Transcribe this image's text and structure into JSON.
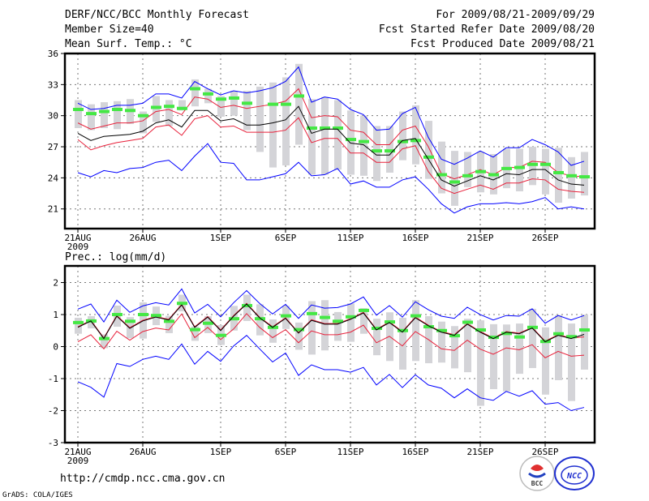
{
  "header": {
    "title": "DERF/NCC/BCC Monthly Forecast",
    "member_size": "Member Size=40",
    "variable": "Mean Surf. Temp.: °C",
    "period": "For 2009/08/21-2009/09/29",
    "start_date": "Fcst Started Refer Date 2009/08/20",
    "produced_date": "Fcst Produced Date 2009/08/21"
  },
  "footer": {
    "url": "http://cmdp.ncc.cma.gov.cn",
    "grads": "GrADS: COLA/IGES",
    "logo_bcc": "BCC",
    "logo_ncc": "NCC"
  },
  "colors": {
    "max_min": "#0000ff",
    "spread": "#e8203a",
    "mean": "#000000",
    "median": "#44e844",
    "box": "#d4d4d8"
  },
  "chart_data": [
    {
      "type": "line",
      "title": "Mean Surf. Temp.: °C",
      "ylim": [
        19.1,
        36
      ],
      "yticks": [
        21,
        24,
        27,
        30,
        33,
        36
      ],
      "xticks": [
        {
          "day": 0,
          "label": "21AUG"
        },
        {
          "day": 5,
          "label": "26AUG"
        },
        {
          "day": 11,
          "label": "1SEP"
        },
        {
          "day": 16,
          "label": "6SEP"
        },
        {
          "day": 21,
          "label": "11SEP"
        },
        {
          "day": 26,
          "label": "16SEP"
        },
        {
          "day": 31,
          "label": "21SEP"
        },
        {
          "day": 36,
          "label": "26SEP"
        }
      ],
      "year_label": "2009",
      "grid": true,
      "series": {
        "max": [
          31.2,
          30.6,
          30.7,
          31.0,
          31.0,
          31.2,
          32.1,
          32.1,
          31.7,
          33.3,
          32.6,
          32.0,
          32.4,
          32.2,
          32.4,
          32.7,
          33.3,
          34.7,
          31.3,
          31.8,
          31.6,
          30.6,
          30.1,
          28.6,
          28.7,
          30.2,
          30.8,
          27.9,
          25.8,
          25.3,
          25.9,
          26.6,
          26.0,
          26.9,
          26.9,
          27.7,
          27.2,
          26.5,
          25.2,
          25.6
        ],
        "upper": [
          29.3,
          28.7,
          29.0,
          29.3,
          29.3,
          29.5,
          30.4,
          30.6,
          30.1,
          31.8,
          31.6,
          30.8,
          31.0,
          30.7,
          30.9,
          31.1,
          31.4,
          32.6,
          29.8,
          30.0,
          29.9,
          28.6,
          28.4,
          27.2,
          27.2,
          28.6,
          29.0,
          27.0,
          24.4,
          23.9,
          24.3,
          24.8,
          24.3,
          25.0,
          25.0,
          25.6,
          25.5,
          24.5,
          24.2,
          24.1
        ],
        "mean": [
          28.3,
          27.6,
          28.0,
          28.1,
          28.2,
          28.5,
          29.3,
          29.6,
          28.9,
          30.5,
          30.5,
          29.5,
          29.7,
          29.1,
          29.1,
          29.3,
          29.6,
          30.9,
          28.3,
          28.7,
          28.7,
          27.35,
          27.2,
          26.2,
          26.2,
          27.6,
          27.8,
          25.8,
          23.8,
          23.2,
          23.7,
          24.2,
          23.8,
          24.4,
          24.3,
          24.8,
          24.8,
          23.8,
          23.4,
          23.3
        ],
        "lower": [
          27.7,
          26.7,
          27.1,
          27.4,
          27.6,
          27.8,
          28.9,
          29.1,
          28.1,
          29.7,
          30.0,
          28.9,
          29.0,
          28.4,
          28.4,
          28.4,
          28.6,
          29.8,
          27.4,
          27.8,
          27.8,
          26.4,
          26.4,
          25.5,
          25.5,
          26.8,
          27.1,
          24.6,
          23.0,
          22.5,
          22.9,
          23.3,
          22.9,
          23.5,
          23.5,
          23.9,
          23.8,
          22.9,
          22.7,
          22.6
        ],
        "min": [
          24.5,
          24.1,
          24.7,
          24.5,
          24.9,
          25.0,
          25.5,
          25.7,
          24.7,
          26.1,
          27.3,
          25.5,
          25.4,
          23.8,
          23.8,
          24.1,
          24.4,
          25.5,
          24.2,
          24.3,
          24.9,
          23.4,
          23.7,
          23.1,
          23.1,
          23.8,
          24.1,
          22.9,
          21.5,
          20.6,
          21.2,
          21.5,
          21.5,
          21.6,
          21.5,
          21.7,
          22.1,
          21.0,
          21.2,
          21.0
        ],
        "median": [
          30.6,
          30.2,
          30.4,
          30.6,
          30.5,
          30.0,
          30.8,
          30.9,
          30.7,
          32.6,
          32.1,
          31.6,
          31.7,
          31.2,
          null,
          31.1,
          31.1,
          31.9,
          28.8,
          28.8,
          28.8,
          27.7,
          27.5,
          26.6,
          26.6,
          27.5,
          27.6,
          26.0,
          24.3,
          23.6,
          24.2,
          24.6,
          24.3,
          24.9,
          25.0,
          25.3,
          25.3,
          24.5,
          24.2,
          24.1
        ],
        "box_low": [
          28.8,
          28.6,
          28.8,
          28.7,
          29.2,
          28.3,
          29.4,
          29.0,
          30.5,
          30.9,
          31.2,
          29.9,
          30.0,
          28.6,
          26.5,
          25.0,
          25.2,
          27.2,
          24.3,
          24.3,
          24.8,
          24.3,
          24.2,
          23.7,
          24.5,
          25.7,
          25.3,
          23.9,
          22.5,
          21.3,
          23.1,
          22.6,
          22.4,
          23.0,
          22.7,
          23.3,
          22.4,
          21.6,
          22.0,
          22.3
        ],
        "box_high": [
          31.5,
          31.1,
          31.3,
          31.4,
          31.6,
          30.4,
          31.9,
          31.5,
          31.5,
          33.5,
          32.6,
          31.9,
          32.4,
          32.4,
          32.8,
          33.2,
          33.7,
          35.0,
          31.6,
          31.8,
          31.5,
          30.5,
          30.0,
          29.0,
          29.0,
          30.4,
          31.0,
          29.5,
          27.5,
          26.6,
          26.5,
          26.5,
          26.3,
          26.8,
          26.8,
          27.0,
          26.8,
          26.9,
          26.0,
          26.5
        ]
      }
    },
    {
      "type": "line",
      "title": "Prec.: log(mm/d)",
      "ylim": [
        -3,
        2.52
      ],
      "yticks": [
        -3,
        -2,
        -1,
        0,
        1,
        2
      ],
      "xticks": [
        {
          "day": 0,
          "label": "21AUG"
        },
        {
          "day": 5,
          "label": "26AUG"
        },
        {
          "day": 11,
          "label": "1SEP"
        },
        {
          "day": 16,
          "label": "6SEP"
        },
        {
          "day": 21,
          "label": "11SEP"
        },
        {
          "day": 26,
          "label": "16SEP"
        },
        {
          "day": 31,
          "label": "21SEP"
        },
        {
          "day": 36,
          "label": "26SEP"
        }
      ],
      "year_label": "2009",
      "grid": true,
      "series": {
        "max": [
          1.17,
          1.33,
          0.77,
          1.45,
          1.07,
          1.27,
          1.37,
          1.3,
          1.8,
          1.05,
          1.32,
          0.93,
          1.37,
          1.75,
          1.35,
          1.02,
          1.32,
          0.88,
          1.3,
          1.2,
          1.22,
          1.33,
          1.55,
          0.98,
          1.28,
          0.92,
          1.4,
          1.15,
          0.95,
          0.88,
          1.23,
          1.0,
          0.83,
          0.97,
          0.95,
          1.18,
          0.73,
          0.97,
          0.83,
          0.97
        ],
        "upper": [
          0.62,
          0.82,
          0.27,
          0.97,
          0.59,
          0.82,
          0.94,
          0.85,
          1.32,
          0.62,
          0.94,
          0.52,
          0.97,
          1.35,
          0.92,
          0.62,
          0.9,
          0.44,
          0.84,
          0.72,
          0.72,
          0.87,
          1.07,
          0.54,
          0.77,
          0.47,
          0.92,
          0.67,
          0.47,
          0.37,
          0.72,
          0.47,
          0.27,
          0.47,
          0.42,
          0.6,
          0.17,
          0.37,
          0.27,
          0.3
        ],
        "mean": [
          0.6,
          0.8,
          0.25,
          0.95,
          0.57,
          0.8,
          0.92,
          0.83,
          1.3,
          0.6,
          0.92,
          0.5,
          0.95,
          1.33,
          0.9,
          0.6,
          0.88,
          0.42,
          0.82,
          0.7,
          0.7,
          0.85,
          1.05,
          0.52,
          0.75,
          0.45,
          0.9,
          0.65,
          0.45,
          0.35,
          0.7,
          0.45,
          0.25,
          0.45,
          0.4,
          0.58,
          0.15,
          0.35,
          0.25,
          0.38
        ],
        "lower": [
          0.15,
          0.37,
          -0.07,
          0.48,
          0.2,
          0.47,
          0.58,
          0.52,
          1.02,
          0.28,
          0.6,
          0.22,
          0.55,
          1.03,
          0.6,
          0.28,
          0.53,
          0.12,
          0.49,
          0.37,
          0.37,
          0.45,
          0.67,
          0.12,
          0.32,
          0.02,
          0.47,
          0.22,
          -0.07,
          -0.12,
          0.2,
          -0.08,
          -0.24,
          -0.04,
          -0.1,
          0.06,
          -0.35,
          -0.15,
          -0.3,
          -0.27
        ],
        "min": [
          -1.1,
          -1.27,
          -1.58,
          -0.53,
          -0.62,
          -0.4,
          -0.3,
          -0.4,
          0.08,
          -0.55,
          -0.15,
          -0.46,
          0.02,
          0.35,
          -0.07,
          -0.48,
          -0.2,
          -0.9,
          -0.57,
          -0.72,
          -0.72,
          -0.8,
          -0.65,
          -1.2,
          -0.87,
          -1.28,
          -0.88,
          -1.2,
          -1.3,
          -1.6,
          -1.32,
          -1.6,
          -1.68,
          -1.4,
          -1.55,
          -1.38,
          -1.8,
          -1.75,
          -2.0,
          -1.9
        ],
        "median": [
          0.75,
          0.8,
          0.25,
          1.0,
          0.79,
          1.0,
          0.97,
          0.79,
          1.35,
          0.53,
          0.73,
          0.35,
          0.87,
          1.28,
          0.87,
          0.6,
          0.96,
          0.53,
          1.03,
          0.91,
          0.79,
          0.93,
          1.13,
          0.57,
          0.77,
          0.5,
          0.96,
          0.62,
          0.5,
          0.34,
          0.76,
          0.52,
          0.29,
          0.41,
          0.3,
          0.6,
          0.16,
          0.4,
          0.31,
          0.52
        ],
        "box_low": [
          0.4,
          0.57,
          -0.05,
          0.62,
          0.26,
          0.25,
          0.67,
          0.42,
          1.1,
          0.18,
          0.42,
          0.05,
          0.5,
          0.8,
          0.35,
          0.12,
          0.55,
          -0.1,
          -0.25,
          -0.12,
          0.18,
          0.15,
          0.4,
          -0.27,
          -0.45,
          -0.72,
          -0.45,
          -0.52,
          -0.5,
          -0.68,
          -0.8,
          -1.85,
          -1.33,
          -1.4,
          -0.85,
          -0.67,
          -1.5,
          -1.05,
          -1.7,
          -0.72
        ],
        "box_high": [
          0.9,
          0.95,
          0.38,
          1.28,
          0.92,
          1.38,
          1.25,
          0.96,
          1.62,
          0.63,
          0.95,
          0.67,
          1.27,
          1.62,
          1.32,
          0.85,
          1.27,
          0.75,
          1.42,
          1.45,
          1.08,
          1.35,
          1.2,
          0.87,
          1.07,
          0.9,
          1.45,
          0.95,
          0.78,
          0.64,
          0.87,
          0.82,
          0.7,
          0.69,
          0.72,
          1.18,
          0.6,
          0.98,
          0.72,
          1.0
        ]
      }
    }
  ]
}
